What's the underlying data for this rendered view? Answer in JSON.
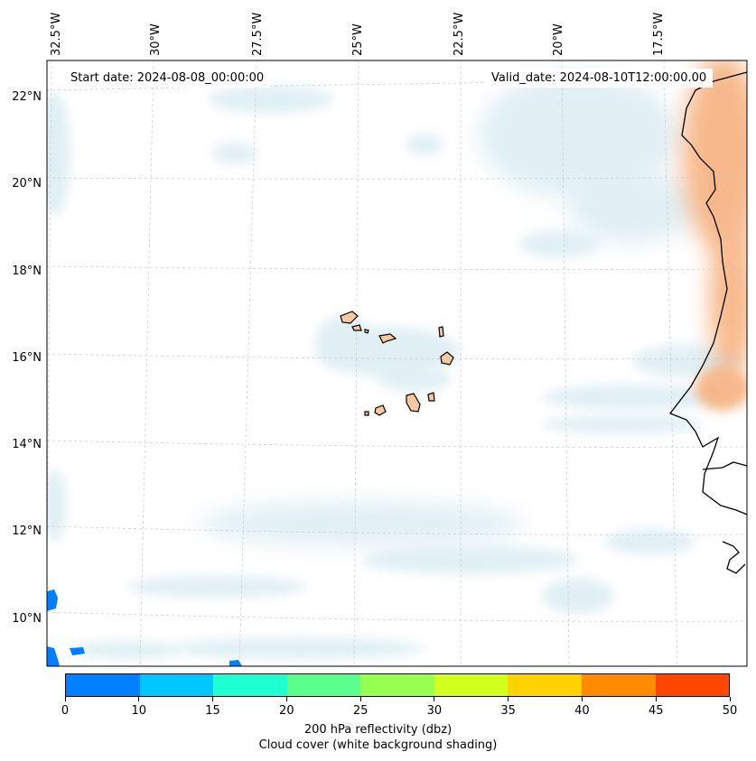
{
  "header": {
    "start_date": "Start date: 2024-08-08_00:00:00",
    "valid_date": "Valid_date: 2024-08-10T12:00:00.00"
  },
  "axes": {
    "lon_labels": [
      "32.5°W",
      "30°W",
      "27.5°W",
      "25°W",
      "22.5°W",
      "20°W",
      "17.5°W"
    ],
    "lat_labels": [
      "22°N",
      "20°N",
      "18°N",
      "16°N",
      "14°N",
      "12°N",
      "10°N"
    ],
    "gridlines": true
  },
  "colorbar": {
    "ticks": [
      "0",
      "10",
      "15",
      "20",
      "25",
      "30",
      "35",
      "40",
      "45",
      "50"
    ],
    "colors": [
      "#007fff",
      "#00c8ff",
      "#1effd2",
      "#5aff8c",
      "#96ff50",
      "#d2ff1e",
      "#ffd200",
      "#ff8c00",
      "#ff4600"
    ],
    "label_line1": "200 hPa reflectivity (dbz)",
    "label_line2": "Cloud cover (white background shading)"
  },
  "style": {
    "cloud_color": "#d7ebf2",
    "land_warm_color": "#f7b07a",
    "island_fill": "#f8c8a0",
    "reflectivity_color": "#007fff"
  }
}
